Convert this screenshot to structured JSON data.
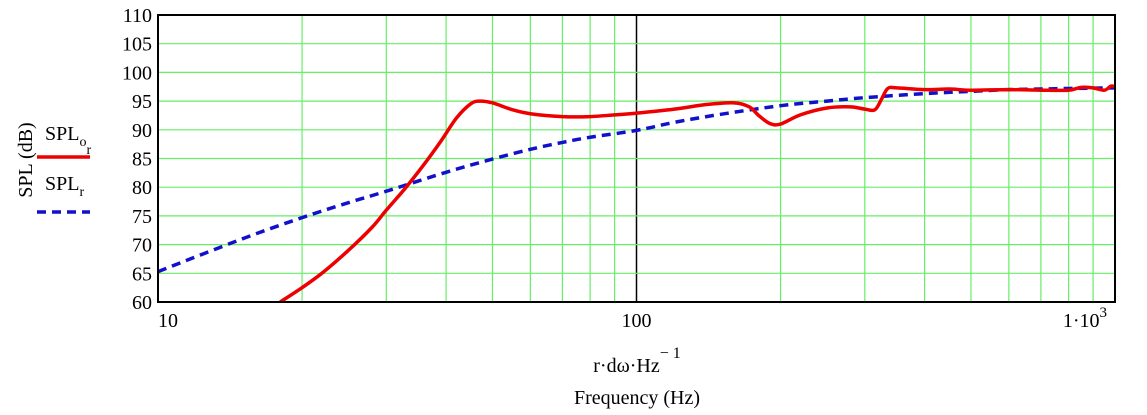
{
  "colors": {
    "grid": "#66ee66",
    "frame": "#000000",
    "series_measured": "#ee0000",
    "series_model": "#1111cc"
  },
  "chart_data": {
    "type": "line",
    "ylabel": "SPL (dB)",
    "xlabel_expr": {
      "base": "r·dω·Hz",
      "exponent": "− 1"
    },
    "xlabel": "Frequency (Hz)",
    "xscale": "log",
    "xlim": [
      10,
      1000
    ],
    "ylim": [
      60,
      110
    ],
    "grid": true,
    "legend_placement": "left",
    "x_ticks": [
      {
        "value": 10,
        "label": "10"
      },
      {
        "value": 100,
        "label": "100"
      },
      {
        "value": 1000,
        "label": "1·10",
        "exponent": "3"
      }
    ],
    "y_ticks": [
      {
        "value": 60,
        "label": "60"
      },
      {
        "value": 65,
        "label": "65"
      },
      {
        "value": 70,
        "label": "70"
      },
      {
        "value": 75,
        "label": "75"
      },
      {
        "value": 80,
        "label": "80"
      },
      {
        "value": 85,
        "label": "85"
      },
      {
        "value": 90,
        "label": "90"
      },
      {
        "value": 95,
        "label": "95"
      },
      {
        "value": 100,
        "label": "100"
      },
      {
        "value": 105,
        "label": "105"
      },
      {
        "value": 110,
        "label": "110"
      }
    ],
    "series": [
      {
        "name": "SPL",
        "subscript": "o",
        "subsubscript": "r",
        "color": "#ee0000",
        "style": "solid",
        "points": [
          [
            18,
            60
          ],
          [
            20,
            62.5
          ],
          [
            22,
            65
          ],
          [
            25,
            69
          ],
          [
            28,
            73
          ],
          [
            30,
            76
          ],
          [
            33,
            80
          ],
          [
            36,
            84
          ],
          [
            39,
            88
          ],
          [
            42,
            92
          ],
          [
            45,
            94.5
          ],
          [
            47,
            95
          ],
          [
            50,
            94.7
          ],
          [
            55,
            93.5
          ],
          [
            60,
            92.8
          ],
          [
            70,
            92.3
          ],
          [
            80,
            92.3
          ],
          [
            90,
            92.6
          ],
          [
            100,
            92.9
          ],
          [
            120,
            93.6
          ],
          [
            140,
            94.4
          ],
          [
            160,
            94.7
          ],
          [
            172,
            94.0
          ],
          [
            180,
            92.5
          ],
          [
            190,
            91.1
          ],
          [
            200,
            91.0
          ],
          [
            220,
            92.6
          ],
          [
            250,
            93.8
          ],
          [
            280,
            94.0
          ],
          [
            300,
            93.6
          ],
          [
            315,
            93.5
          ],
          [
            325,
            95.3
          ],
          [
            335,
            97.2
          ],
          [
            350,
            97.3
          ],
          [
            400,
            97.0
          ],
          [
            450,
            97.1
          ],
          [
            500,
            96.9
          ],
          [
            600,
            97.0
          ],
          [
            700,
            96.9
          ],
          [
            800,
            96.9
          ],
          [
            850,
            97.4
          ],
          [
            900,
            97.3
          ],
          [
            950,
            96.9
          ],
          [
            980,
            97.6
          ],
          [
            1000,
            97.5
          ]
        ]
      },
      {
        "name": "SPL",
        "subscript": "r",
        "color": "#1111cc",
        "style": "dashed",
        "points": [
          [
            10,
            65.3
          ],
          [
            15,
            71.0
          ],
          [
            20,
            74.7
          ],
          [
            25,
            77.3
          ],
          [
            30,
            79.3
          ],
          [
            40,
            82.6
          ],
          [
            50,
            84.9
          ],
          [
            60,
            86.6
          ],
          [
            70,
            87.8
          ],
          [
            80,
            88.7
          ],
          [
            100,
            89.9
          ],
          [
            120,
            91.3
          ],
          [
            150,
            92.7
          ],
          [
            200,
            94.2
          ],
          [
            250,
            95.0
          ],
          [
            300,
            95.6
          ],
          [
            400,
            96.3
          ],
          [
            500,
            96.7
          ],
          [
            600,
            97.0
          ],
          [
            700,
            97.1
          ],
          [
            800,
            97.2
          ],
          [
            1000,
            97.3
          ]
        ]
      }
    ]
  }
}
